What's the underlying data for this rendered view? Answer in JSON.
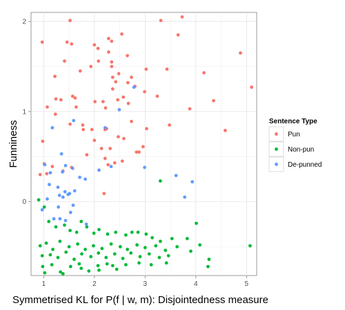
{
  "chart_data": {
    "type": "scatter",
    "xlabel": "Symmetrised KL for P(f | w, m): Disjointedness measure",
    "ylabel": "Funniness",
    "xlim": [
      0.75,
      5.2
    ],
    "ylim": [
      -0.82,
      2.1
    ],
    "x_ticks": [
      "1",
      "2",
      "3",
      "4",
      "5"
    ],
    "y_ticks": [
      "0",
      "1",
      "2"
    ],
    "grid": true,
    "legend_position": "right",
    "legend_title": "Sentence Type",
    "series": [
      {
        "name": "Pun",
        "color": "#F8766D",
        "points": [
          [
            0.97,
            1.77
          ],
          [
            1.46,
            1.77
          ],
          [
            1.55,
            1.75
          ],
          [
            1.52,
            2.01
          ],
          [
            1.22,
            1.39
          ],
          [
            1.41,
            1.56
          ],
          [
            1.72,
            1.45
          ],
          [
            1.93,
            1.5
          ],
          [
            2.0,
            1.74
          ],
          [
            2.07,
            1.7
          ],
          [
            2.28,
            1.81
          ],
          [
            2.28,
            1.66
          ],
          [
            2.34,
            1.78
          ],
          [
            2.54,
            1.86
          ],
          [
            2.65,
            1.62
          ],
          [
            2.34,
            1.55
          ],
          [
            2.08,
            1.56
          ],
          [
            2.34,
            1.5
          ],
          [
            2.48,
            1.42
          ],
          [
            2.42,
            1.33
          ],
          [
            2.66,
            1.32
          ],
          [
            2.8,
            1.28
          ],
          [
            2.73,
            1.38
          ],
          [
            2.57,
            1.16
          ],
          [
            2.67,
            1.09
          ],
          [
            2.46,
            1.13
          ],
          [
            2.36,
            1.25
          ],
          [
            2.36,
            1.38
          ],
          [
            2.22,
            1.04
          ],
          [
            2.17,
            1.11
          ],
          [
            2.01,
            1.11
          ],
          [
            1.62,
            1.15
          ],
          [
            1.57,
            1.17
          ],
          [
            1.34,
            1.13
          ],
          [
            1.24,
            1.14
          ],
          [
            1.07,
            1.05
          ],
          [
            1.23,
            0.97
          ],
          [
            1.64,
            1.05
          ],
          [
            1.52,
            0.86
          ],
          [
            1.77,
            0.85
          ],
          [
            2.0,
            0.68
          ],
          [
            2.14,
            0.59
          ],
          [
            2.31,
            0.59
          ],
          [
            2.47,
            0.72
          ],
          [
            2.58,
            0.7
          ],
          [
            2.73,
            0.89
          ],
          [
            2.83,
            0.55
          ],
          [
            2.55,
            0.45
          ],
          [
            2.4,
            0.43
          ],
          [
            2.27,
            0.41
          ],
          [
            2.21,
            0.48
          ],
          [
            2.24,
            0.81
          ],
          [
            2.21,
            0.8
          ],
          [
            1.95,
            0.8
          ],
          [
            1.78,
            0.8
          ],
          [
            1.85,
            0.52
          ],
          [
            1.55,
            0.38
          ],
          [
            1.38,
            0.34
          ],
          [
            1.17,
            0.39
          ],
          [
            1.01,
            0.42
          ],
          [
            0.93,
            0.3
          ],
          [
            1.06,
            0.31
          ],
          [
            0.98,
            0.67
          ],
          [
            2.19,
            0.09
          ],
          [
            3.31,
            2.01
          ],
          [
            3.73,
            2.05
          ],
          [
            3.65,
            1.85
          ],
          [
            3.02,
            1.47
          ],
          [
            3.43,
            1.47
          ],
          [
            4.16,
            1.43
          ],
          [
            5.1,
            1.27
          ],
          [
            4.88,
            1.65
          ],
          [
            4.35,
            1.12
          ],
          [
            3.88,
            1.03
          ],
          [
            2.99,
            1.22
          ],
          [
            3.24,
            1.17
          ],
          [
            3.03,
            0.81
          ],
          [
            3.48,
            0.85
          ],
          [
            4.58,
            0.79
          ],
          [
            2.96,
            0.61
          ],
          [
            2.88,
            0.55
          ]
        ]
      },
      {
        "name": "Non-pun",
        "color": "#00BA38",
        "points": [
          [
            0.9,
            0.02
          ],
          [
            1.01,
            -0.06
          ],
          [
            1.1,
            -0.22
          ],
          [
            1.24,
            -0.28
          ],
          [
            1.41,
            -0.26
          ],
          [
            1.52,
            -0.32
          ],
          [
            1.65,
            -0.34
          ],
          [
            1.74,
            -0.22
          ],
          [
            1.85,
            -0.28
          ],
          [
            1.99,
            -0.35
          ],
          [
            2.09,
            -0.31
          ],
          [
            2.26,
            -0.36
          ],
          [
            2.42,
            -0.34
          ],
          [
            2.62,
            -0.37
          ],
          [
            2.74,
            -0.34
          ],
          [
            2.86,
            -0.34
          ],
          [
            3.02,
            -0.36
          ],
          [
            3.14,
            -0.4
          ],
          [
            3.3,
            -0.44
          ],
          [
            3.53,
            -0.41
          ],
          [
            3.83,
            -0.41
          ],
          [
            4.01,
            -0.24
          ],
          [
            3.3,
            0.23
          ],
          [
            0.93,
            -0.49
          ],
          [
            1.05,
            -0.46
          ],
          [
            1.18,
            -0.53
          ],
          [
            1.32,
            -0.44
          ],
          [
            1.5,
            -0.5
          ],
          [
            1.67,
            -0.47
          ],
          [
            1.82,
            -0.53
          ],
          [
            1.98,
            -0.49
          ],
          [
            2.15,
            -0.52
          ],
          [
            2.33,
            -0.47
          ],
          [
            2.51,
            -0.5
          ],
          [
            2.65,
            -0.53
          ],
          [
            2.84,
            -0.48
          ],
          [
            3.0,
            -0.51
          ],
          [
            3.21,
            -0.49
          ],
          [
            3.4,
            -0.54
          ],
          [
            3.63,
            -0.5
          ],
          [
            3.9,
            -0.55
          ],
          [
            4.08,
            -0.48
          ],
          [
            5.07,
            -0.49
          ],
          [
            0.97,
            -0.6
          ],
          [
            1.13,
            -0.59
          ],
          [
            1.28,
            -0.62
          ],
          [
            1.44,
            -0.56
          ],
          [
            1.6,
            -0.64
          ],
          [
            1.75,
            -0.58
          ],
          [
            1.93,
            -0.61
          ],
          [
            2.08,
            -0.57
          ],
          [
            2.23,
            -0.62
          ],
          [
            2.4,
            -0.58
          ],
          [
            2.56,
            -0.63
          ],
          [
            2.72,
            -0.57
          ],
          [
            2.9,
            -0.61
          ],
          [
            3.08,
            -0.58
          ],
          [
            3.28,
            -0.62
          ],
          [
            3.46,
            -0.6
          ],
          [
            0.98,
            -0.72
          ],
          [
            1.16,
            -0.7
          ],
          [
            1.33,
            -0.78
          ],
          [
            1.53,
            -0.72
          ],
          [
            1.7,
            -0.69
          ],
          [
            1.89,
            -0.77
          ],
          [
            2.07,
            -0.71
          ],
          [
            2.25,
            -0.69
          ],
          [
            2.44,
            -0.75
          ],
          [
            2.62,
            -0.7
          ],
          [
            2.88,
            -0.68
          ],
          [
            3.12,
            -0.7
          ],
          [
            3.42,
            -0.68
          ],
          [
            4.24,
            -0.72
          ],
          [
            4.26,
            -0.64
          ],
          [
            1.02,
            -0.79
          ],
          [
            1.38,
            -0.8
          ],
          [
            1.74,
            -0.74
          ],
          [
            2.09,
            -0.76
          ],
          [
            2.36,
            -0.71
          ]
        ]
      },
      {
        "name": "De-punned",
        "color": "#619CFF",
        "points": [
          [
            1.17,
            0.82
          ],
          [
            1.59,
            0.9
          ],
          [
            2.78,
            1.27
          ],
          [
            2.49,
            1.02
          ],
          [
            2.21,
            0.82
          ],
          [
            1.35,
            0.53
          ],
          [
            1.02,
            0.41
          ],
          [
            1.43,
            0.4
          ],
          [
            1.37,
            0.33
          ],
          [
            1.57,
            0.37
          ],
          [
            1.71,
            0.27
          ],
          [
            1.82,
            0.25
          ],
          [
            2.09,
            0.35
          ],
          [
            2.33,
            0.39
          ],
          [
            2.99,
            0.38
          ],
          [
            1.13,
            0.32
          ],
          [
            1.11,
            0.19
          ],
          [
            1.28,
            0.16
          ],
          [
            1.42,
            0.11
          ],
          [
            1.51,
            0.09
          ],
          [
            1.61,
            0.12
          ],
          [
            1.31,
            0.07
          ],
          [
            1.38,
            0.05
          ],
          [
            1.48,
            0.08
          ],
          [
            1.07,
            0.03
          ],
          [
            1.29,
            -0.06
          ],
          [
            0.97,
            -0.09
          ],
          [
            1.58,
            -0.04
          ],
          [
            1.53,
            -0.12
          ],
          [
            1.32,
            -0.19
          ],
          [
            1.2,
            -0.19
          ],
          [
            1.43,
            -0.21
          ],
          [
            1.84,
            -0.25
          ],
          [
            3.61,
            0.29
          ],
          [
            3.93,
            0.22
          ],
          [
            3.78,
            0.05
          ]
        ]
      }
    ]
  }
}
